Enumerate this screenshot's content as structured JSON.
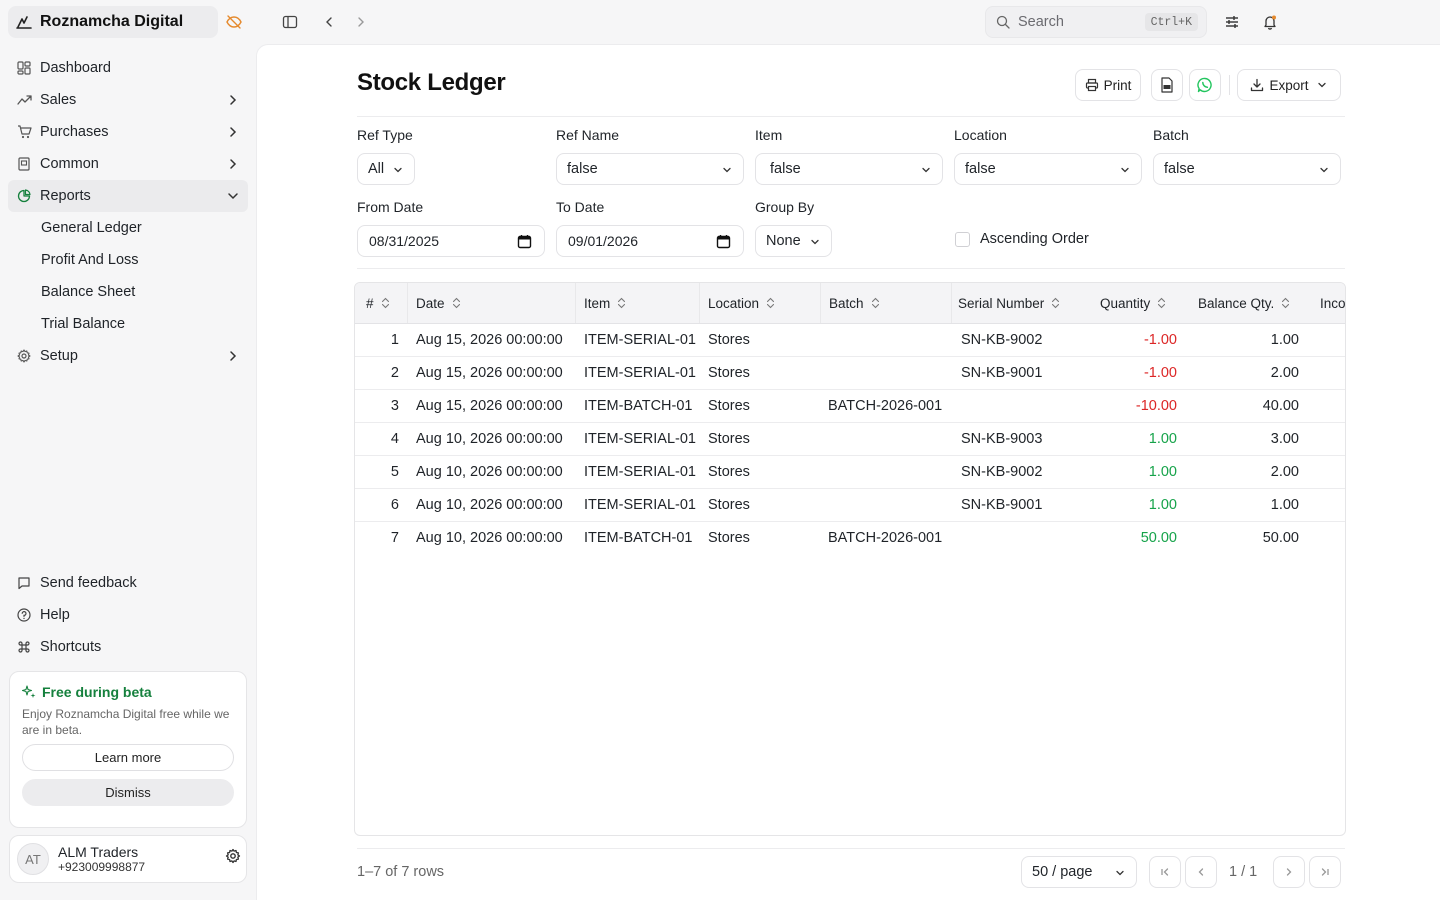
{
  "app": {
    "name": "Roznamcha Digital"
  },
  "sidebar": {
    "items": [
      {
        "label": "Dashboard",
        "icon": "dashboard-icon"
      },
      {
        "label": "Sales",
        "icon": "trend-icon"
      },
      {
        "label": "Purchases",
        "icon": "cart-icon"
      },
      {
        "label": "Common",
        "icon": "book-icon"
      },
      {
        "label": "Reports",
        "icon": "pie-chart-icon"
      }
    ],
    "report_items": [
      "General Ledger",
      "Profit And Loss",
      "Balance Sheet",
      "Trial Balance"
    ],
    "setup_label": "Setup",
    "bottom": {
      "feedback": "Send feedback",
      "help": "Help",
      "shortcuts": "Shortcuts"
    },
    "beta": {
      "title": "Free during beta",
      "text": "Enjoy Roznamcha Digital free while we are in beta.",
      "learn_more": "Learn more",
      "dismiss": "Dismiss"
    },
    "account": {
      "initials": "AT",
      "name": "ALM Traders",
      "phone": "+923009998877"
    }
  },
  "topbar": {
    "search_placeholder": "Search",
    "search_shortcut": "Ctrl+K"
  },
  "page": {
    "title": "Stock Ledger",
    "actions": {
      "print": "Print",
      "export": "Export"
    }
  },
  "filters": {
    "ref_type": {
      "label": "Ref Type",
      "value": "All"
    },
    "ref_name": {
      "label": "Ref Name",
      "value": "false"
    },
    "item": {
      "label": "Item",
      "value": "false"
    },
    "location": {
      "label": "Location",
      "value": "false"
    },
    "batch": {
      "label": "Batch",
      "value": "false"
    },
    "from_date": {
      "label": "From Date",
      "value": "08/31/2025"
    },
    "to_date": {
      "label": "To Date",
      "value": "09/01/2026"
    },
    "group_by": {
      "label": "Group By",
      "value": "None"
    },
    "ascending": {
      "label": "Ascending Order",
      "checked": false
    }
  },
  "table": {
    "columns": [
      "#",
      "Date",
      "Item",
      "Location",
      "Batch",
      "Serial Number",
      "Quantity",
      "Balance Qty.",
      "Inco"
    ],
    "rows": [
      {
        "n": "1",
        "date": "Aug 15, 2026 00:00:00",
        "item": "ITEM-SERIAL-01",
        "location": "Stores",
        "batch": "",
        "serial": "SN-KB-9002",
        "qty": "-1.00",
        "balance": "1.00"
      },
      {
        "n": "2",
        "date": "Aug 15, 2026 00:00:00",
        "item": "ITEM-SERIAL-01",
        "location": "Stores",
        "batch": "",
        "serial": "SN-KB-9001",
        "qty": "-1.00",
        "balance": "2.00"
      },
      {
        "n": "3",
        "date": "Aug 15, 2026 00:00:00",
        "item": "ITEM-BATCH-01",
        "location": "Stores",
        "batch": "BATCH-2026-001",
        "serial": "",
        "qty": "-10.00",
        "balance": "40.00"
      },
      {
        "n": "4",
        "date": "Aug 10, 2026 00:00:00",
        "item": "ITEM-SERIAL-01",
        "location": "Stores",
        "batch": "",
        "serial": "SN-KB-9003",
        "qty": "1.00",
        "balance": "3.00"
      },
      {
        "n": "5",
        "date": "Aug 10, 2026 00:00:00",
        "item": "ITEM-SERIAL-01",
        "location": "Stores",
        "batch": "",
        "serial": "SN-KB-9002",
        "qty": "1.00",
        "balance": "2.00"
      },
      {
        "n": "6",
        "date": "Aug 10, 2026 00:00:00",
        "item": "ITEM-SERIAL-01",
        "location": "Stores",
        "batch": "",
        "serial": "SN-KB-9001",
        "qty": "1.00",
        "balance": "1.00"
      },
      {
        "n": "7",
        "date": "Aug 10, 2026 00:00:00",
        "item": "ITEM-BATCH-01",
        "location": "Stores",
        "batch": "BATCH-2026-001",
        "serial": "",
        "qty": "50.00",
        "balance": "50.00"
      }
    ]
  },
  "pagination": {
    "summary": "1–7 of 7 rows",
    "per_page": "50 / page",
    "page": "1 / 1"
  },
  "colors": {
    "negative": "#dc2626",
    "positive": "#16a34a",
    "beta_accent": "#15803d",
    "whatsapp": "#22c55e",
    "warning_icon": "#e58a2e"
  }
}
